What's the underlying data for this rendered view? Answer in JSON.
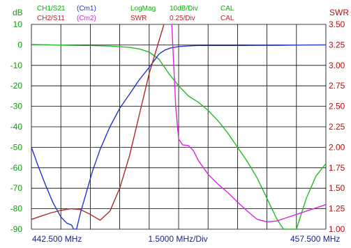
{
  "header": {
    "row1": {
      "channel": "CH1/S21",
      "marker_mode": "(Cm1)",
      "format": "LogMag",
      "scale": "10dB/Div",
      "cal": "CAL"
    },
    "row2": {
      "channel": "CH2/S11",
      "marker_mode": "(Cm2)",
      "format": "SWR",
      "scale": "0.25/Div",
      "cal": "CAL"
    }
  },
  "colors": {
    "ch1": "#22bb22",
    "ch1_label": "#11aa11",
    "ch2_label": "#bb2222",
    "cm1": "#2233cc",
    "cm2": "#dd22dd",
    "swr_trace": "#b02828",
    "axis_left": "#119911",
    "axis_right": "#aa1111",
    "grid": "#000000",
    "footer": "#1a2288"
  },
  "chart_data": {
    "type": "line",
    "left_axis": {
      "unit_label": "dB",
      "ylim": [
        -90,
        10
      ],
      "ticks": [
        10,
        0,
        -10,
        -20,
        -30,
        -40,
        -50,
        -60,
        -70,
        -80,
        -90
      ],
      "tick_labels": [
        "10",
        "0",
        "-10",
        "-20",
        "-30",
        "-40",
        "-50",
        "-60",
        "-70",
        "-80",
        "-90"
      ]
    },
    "right_axis": {
      "unit_label": "SWR",
      "ylim": [
        1.0,
        3.5
      ],
      "ticks": [
        3.5,
        3.25,
        3.0,
        2.75,
        2.5,
        2.25,
        2.0,
        1.75,
        1.5,
        1.25,
        1.0
      ],
      "tick_labels": [
        "3.50",
        "3.25",
        "3.00",
        "2.75",
        "2.50",
        "2.25",
        "2.00",
        "1.75",
        "1.50",
        "1.25",
        "1.00"
      ]
    },
    "x_axis": {
      "start_label": "442.500 MHz",
      "span_label": "1.5000 MHz/Div",
      "stop_label": "457.500 MHz",
      "xlim": [
        442.5,
        457.5
      ],
      "divisions": 10
    },
    "grid": true,
    "series": [
      {
        "name": "CH1/S21",
        "axis": "left",
        "color_key": "ch1",
        "x": [
          442.5,
          443.5,
          444.5,
          445.5,
          446.5,
          447.5,
          448.0,
          448.5,
          449.0,
          449.5,
          450.0,
          450.5,
          451.0,
          451.5,
          452.0,
          452.5,
          453.0,
          453.5,
          454.0,
          454.5,
          455.0,
          455.2,
          455.35,
          455.5,
          456.0,
          456.5,
          457.0,
          457.5
        ],
        "y": [
          0.2,
          0.0,
          -0.2,
          -0.3,
          -0.6,
          -1.2,
          -2.0,
          -3.5,
          -7.0,
          -14.0,
          -20.0,
          -25.0,
          -28.0,
          -32.0,
          -37.0,
          -43.0,
          -50.0,
          -57.0,
          -65.0,
          -75.0,
          -85.0,
          -88.0,
          -90.0,
          -90.0,
          -90.0,
          -75.0,
          -64.0,
          -58.0
        ]
      },
      {
        "name": "(Cm1)",
        "axis": "left",
        "color_key": "cm1",
        "x": [
          442.5,
          442.8,
          443.2,
          443.6,
          444.0,
          444.3,
          444.55,
          444.65,
          444.8,
          445.0,
          445.3,
          445.6,
          446.0,
          446.5,
          447.0,
          447.5,
          448.0,
          448.5,
          449.0,
          449.3,
          449.6,
          450.0,
          450.5,
          451.0,
          452.0,
          453.0,
          454.0,
          455.0,
          456.0,
          457.5
        ],
        "y": [
          -50.0,
          -58.0,
          -68.0,
          -77.0,
          -84.0,
          -87.0,
          -88.0,
          -90.0,
          -90.0,
          -82.0,
          -72.0,
          -62.0,
          -51.0,
          -40.0,
          -31.0,
          -24.0,
          -17.0,
          -11.0,
          -4.5,
          -2.5,
          -1.5,
          -0.8,
          -0.5,
          -0.3,
          -0.3,
          -0.3,
          -0.2,
          -0.2,
          -0.1,
          0.0
        ]
      },
      {
        "name": "SWR",
        "axis": "right",
        "color_key": "swr_trace",
        "x": [
          442.5,
          443.0,
          443.5,
          444.0,
          444.5,
          445.0,
          445.5,
          446.0,
          446.5,
          447.0,
          447.5,
          448.0,
          448.5,
          449.0,
          449.25
        ],
        "y": [
          1.12,
          1.16,
          1.2,
          1.23,
          1.25,
          1.24,
          1.18,
          1.11,
          1.22,
          1.5,
          1.9,
          2.4,
          2.9,
          3.3,
          3.5
        ]
      },
      {
        "name": "(Cm2)",
        "axis": "right",
        "color_key": "cm2",
        "x": [
          449.65,
          449.75,
          449.85,
          450.0,
          450.2,
          450.5,
          450.75,
          451.0,
          451.5,
          452.0,
          452.5,
          453.0,
          453.5,
          454.0,
          454.5,
          455.0,
          455.5,
          456.0,
          456.5,
          457.0,
          457.5
        ],
        "y": [
          3.5,
          3.0,
          2.5,
          2.1,
          2.03,
          2.02,
          1.96,
          1.84,
          1.67,
          1.55,
          1.45,
          1.33,
          1.22,
          1.12,
          1.09,
          1.1,
          1.14,
          1.18,
          1.22,
          1.26,
          1.3
        ]
      }
    ]
  }
}
